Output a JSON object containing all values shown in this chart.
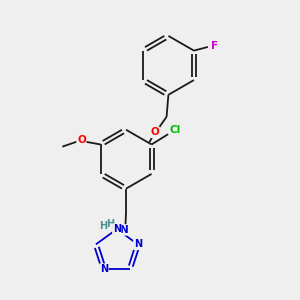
{
  "background_color": "#efefef",
  "bond_color": "#1a1a1a",
  "atom_colors": {
    "O": "#ff0000",
    "N": "#0000cc",
    "Cl": "#00bb00",
    "F": "#cc00cc",
    "H_N": "#4a9090",
    "C": "#1a1a1a"
  },
  "figsize": [
    3.0,
    3.0
  ],
  "dpi": 100
}
